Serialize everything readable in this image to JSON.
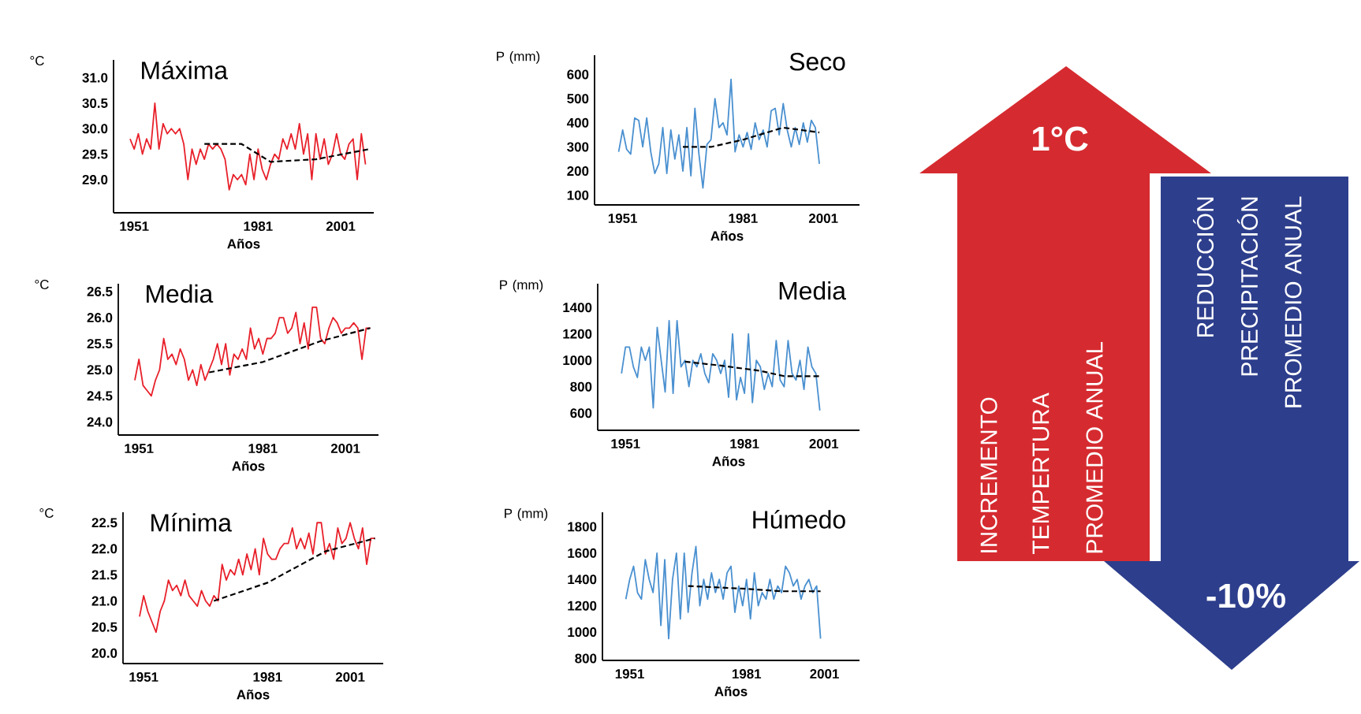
{
  "chart_data": [
    {
      "type": "line",
      "title": "Máxima",
      "xlabel": "Años",
      "ylabel": "°C",
      "xlim": [
        1946,
        2009
      ],
      "ylim": [
        28.35,
        31.35
      ],
      "xticks": [
        1951,
        1981,
        2001
      ],
      "yticks": [
        {
          "value": 29,
          "label": "29.0"
        },
        {
          "value": 29.5,
          "label": "29.5"
        },
        {
          "value": 30,
          "label": "30.0"
        },
        {
          "value": 30.5,
          "label": "30.5"
        },
        {
          "value": 31,
          "label": "31.0"
        }
      ],
      "series": [
        {
          "color": "#e8202a",
          "x": [
            1950,
            1951,
            1952,
            1953,
            1954,
            1955,
            1956,
            1957,
            1958,
            1959,
            1960,
            1961,
            1962,
            1963,
            1964,
            1965,
            1966,
            1967,
            1968,
            1969,
            1970,
            1971,
            1972,
            1973,
            1974,
            1975,
            1976,
            1977,
            1978,
            1979,
            1980,
            1981,
            1982,
            1983,
            1984,
            1985,
            1986,
            1987,
            1988,
            1989,
            1990,
            1991,
            1992,
            1993,
            1994,
            1995,
            1996,
            1997,
            1998,
            1999,
            2000,
            2001,
            2002,
            2003,
            2004,
            2005,
            2006,
            2007
          ],
          "values": [
            29.8,
            29.6,
            29.9,
            29.5,
            29.8,
            29.6,
            30.5,
            29.6,
            30.1,
            29.9,
            30.0,
            29.9,
            30.0,
            29.7,
            29.0,
            29.6,
            29.3,
            29.6,
            29.4,
            29.7,
            29.6,
            29.7,
            29.6,
            29.4,
            28.8,
            29.1,
            29.0,
            29.1,
            28.9,
            29.5,
            29.0,
            29.6,
            29.2,
            29.0,
            29.3,
            29.5,
            29.4,
            29.8,
            29.6,
            29.9,
            29.6,
            30.1,
            29.5,
            29.9,
            29.0,
            29.9,
            29.4,
            29.8,
            29.3,
            29.5,
            29.9,
            29.5,
            29.4,
            29.7,
            29.8,
            29.0,
            29.9,
            29.3
          ]
        },
        {
          "color": "#000000",
          "line_style": "dashed",
          "x": [
            1968,
            1977,
            1984,
            1995,
            2008
          ],
          "values": [
            29.7,
            29.7,
            29.35,
            29.4,
            29.6
          ]
        }
      ]
    },
    {
      "type": "line",
      "title": "Media",
      "xlabel": "Años",
      "ylabel": "°C",
      "xlim": [
        1946,
        2009
      ],
      "ylim": [
        23.75,
        26.65
      ],
      "xticks": [
        1951,
        1981,
        2001
      ],
      "yticks": [
        {
          "value": 24,
          "label": "24.0"
        },
        {
          "value": 24.5,
          "label": "24.5"
        },
        {
          "value": 25,
          "label": "25.0"
        },
        {
          "value": 25.5,
          "label": "25.5"
        },
        {
          "value": 26,
          "label": "26.0"
        },
        {
          "value": 26.5,
          "label": "26.5"
        }
      ],
      "series": [
        {
          "color": "#e8202a",
          "x": [
            1950,
            1951,
            1952,
            1953,
            1954,
            1955,
            1956,
            1957,
            1958,
            1959,
            1960,
            1961,
            1962,
            1963,
            1964,
            1965,
            1966,
            1967,
            1968,
            1969,
            1970,
            1971,
            1972,
            1973,
            1974,
            1975,
            1976,
            1977,
            1978,
            1979,
            1980,
            1981,
            1982,
            1983,
            1984,
            1985,
            1986,
            1987,
            1988,
            1989,
            1990,
            1991,
            1992,
            1993,
            1994,
            1995,
            1996,
            1997,
            1998,
            1999,
            2000,
            2001,
            2002,
            2003,
            2004,
            2005,
            2006,
            2007
          ],
          "values": [
            24.8,
            25.2,
            24.7,
            24.6,
            24.5,
            24.8,
            25.0,
            25.6,
            25.2,
            25.3,
            25.1,
            25.4,
            25.2,
            24.8,
            25.0,
            24.7,
            25.1,
            24.8,
            25.0,
            25.2,
            25.5,
            25.1,
            25.5,
            24.9,
            25.3,
            25.2,
            25.4,
            25.2,
            25.8,
            25.4,
            25.6,
            25.3,
            25.6,
            25.6,
            25.7,
            26.0,
            26.0,
            25.7,
            25.8,
            26.1,
            25.5,
            25.9,
            25.4,
            26.2,
            26.2,
            25.6,
            25.5,
            25.8,
            26.0,
            25.9,
            25.7,
            25.8,
            25.8,
            25.9,
            25.8,
            25.2,
            25.8,
            25.8
          ]
        },
        {
          "color": "#000000",
          "line_style": "dashed",
          "x": [
            1968,
            1981,
            1995,
            2007
          ],
          "values": [
            24.95,
            25.15,
            25.55,
            25.8
          ]
        }
      ]
    },
    {
      "type": "line",
      "title": "Mínima",
      "xlabel": "Años",
      "ylabel": "°C",
      "xlim": [
        1946,
        2009
      ],
      "ylim": [
        19.8,
        22.7
      ],
      "xticks": [
        1951,
        1981,
        2001
      ],
      "yticks": [
        {
          "value": 20,
          "label": "20.0"
        },
        {
          "value": 20.5,
          "label": "20.5"
        },
        {
          "value": 21,
          "label": "21.0"
        },
        {
          "value": 21.5,
          "label": "21.5"
        },
        {
          "value": 22,
          "label": "22.0"
        },
        {
          "value": 22.5,
          "label": "22.5"
        }
      ],
      "series": [
        {
          "color": "#e8202a",
          "x": [
            1950,
            1951,
            1952,
            1953,
            1954,
            1955,
            1956,
            1957,
            1958,
            1959,
            1960,
            1961,
            1962,
            1963,
            1964,
            1965,
            1966,
            1967,
            1968,
            1969,
            1970,
            1971,
            1972,
            1973,
            1974,
            1975,
            1976,
            1977,
            1978,
            1979,
            1980,
            1981,
            1982,
            1983,
            1984,
            1985,
            1986,
            1987,
            1988,
            1989,
            1990,
            1991,
            1992,
            1993,
            1994,
            1995,
            1996,
            1997,
            1998,
            1999,
            2000,
            2001,
            2002,
            2003,
            2004,
            2005,
            2006,
            2007
          ],
          "values": [
            20.7,
            21.1,
            20.8,
            20.6,
            20.4,
            20.8,
            21.0,
            21.4,
            21.2,
            21.3,
            21.1,
            21.4,
            21.1,
            21.0,
            20.9,
            21.2,
            21.0,
            20.9,
            21.1,
            21.0,
            21.7,
            21.4,
            21.6,
            21.5,
            21.8,
            21.5,
            21.9,
            21.6,
            22.0,
            21.5,
            22.2,
            21.9,
            21.8,
            21.8,
            22.0,
            22.1,
            22.1,
            22.4,
            22.0,
            22.2,
            22.0,
            22.3,
            21.9,
            22.5,
            22.5,
            21.9,
            22.1,
            21.8,
            22.4,
            22.1,
            22.2,
            22.5,
            22.2,
            22.0,
            22.4,
            21.7,
            22.2,
            22.2
          ]
        },
        {
          "color": "#000000",
          "line_style": "dashed",
          "x": [
            1968,
            1981,
            1995,
            2007
          ],
          "values": [
            21.0,
            21.35,
            21.95,
            22.2
          ]
        }
      ]
    },
    {
      "type": "line",
      "title": "Seco",
      "xlabel": "Años",
      "ylabel": "P (mm)",
      "xlim": [
        1944,
        2010
      ],
      "ylim": [
        60,
        680
      ],
      "xticks": [
        1951,
        1981,
        2001
      ],
      "yticks": [
        100,
        200,
        300,
        400,
        500,
        600
      ],
      "series": [
        {
          "color": "#4a90d0",
          "x": [
            1950,
            1951,
            1952,
            1953,
            1954,
            1955,
            1956,
            1957,
            1958,
            1959,
            1960,
            1961,
            1962,
            1963,
            1964,
            1965,
            1966,
            1967,
            1968,
            1969,
            1970,
            1971,
            1972,
            1973,
            1974,
            1975,
            1976,
            1977,
            1978,
            1979,
            1980,
            1981,
            1982,
            1983,
            1984,
            1985,
            1986,
            1987,
            1988,
            1989,
            1990,
            1991,
            1992,
            1993,
            1994,
            1995,
            1996,
            1997,
            1998,
            1999,
            2000
          ],
          "values": [
            280,
            370,
            290,
            270,
            420,
            410,
            300,
            420,
            280,
            190,
            230,
            380,
            190,
            370,
            250,
            350,
            200,
            380,
            180,
            460,
            270,
            130,
            310,
            330,
            500,
            380,
            400,
            350,
            580,
            280,
            350,
            300,
            360,
            290,
            400,
            330,
            370,
            300,
            450,
            460,
            350,
            480,
            370,
            300,
            380,
            310,
            400,
            320,
            410,
            380,
            230
          ]
        },
        {
          "color": "#000000",
          "line_style": "dashed",
          "x": [
            1966,
            1973,
            1981,
            1991,
            2000
          ],
          "values": [
            300,
            300,
            330,
            380,
            360
          ]
        }
      ]
    },
    {
      "type": "line",
      "title": "Media",
      "xlabel": "Años",
      "ylabel": "P (mm)",
      "xlim": [
        1944,
        2010
      ],
      "ylim": [
        470,
        1580
      ],
      "xticks": [
        1951,
        1981,
        2001
      ],
      "yticks": [
        600,
        800,
        1000,
        1200,
        1400
      ],
      "series": [
        {
          "color": "#4a90d0",
          "x": [
            1950,
            1951,
            1952,
            1953,
            1954,
            1955,
            1956,
            1957,
            1958,
            1959,
            1960,
            1961,
            1962,
            1963,
            1964,
            1965,
            1966,
            1967,
            1968,
            1969,
            1970,
            1971,
            1972,
            1973,
            1974,
            1975,
            1976,
            1977,
            1978,
            1979,
            1980,
            1981,
            1982,
            1983,
            1984,
            1985,
            1986,
            1987,
            1988,
            1989,
            1990,
            1991,
            1992,
            1993,
            1994,
            1995,
            1996,
            1997,
            1998,
            1999,
            2000
          ],
          "values": [
            900,
            1100,
            1100,
            950,
            870,
            1100,
            1000,
            1100,
            640,
            1250,
            1000,
            760,
            1300,
            750,
            1300,
            950,
            1000,
            800,
            1000,
            950,
            1050,
            900,
            830,
            1050,
            1000,
            900,
            1000,
            720,
            1200,
            700,
            870,
            750,
            1200,
            680,
            1000,
            950,
            780,
            900,
            800,
            1150,
            850,
            800,
            1150,
            900,
            850,
            1000,
            780,
            1100,
            950,
            900,
            620
          ]
        },
        {
          "color": "#000000",
          "line_style": "dashed",
          "x": [
            1966,
            1975,
            1985,
            1991,
            2000
          ],
          "values": [
            990,
            960,
            920,
            880,
            880
          ]
        }
      ]
    },
    {
      "type": "line",
      "title": "Húmedo",
      "xlabel": "Años",
      "ylabel": "P (mm)",
      "xlim": [
        1944,
        2010
      ],
      "ylim": [
        785,
        1910
      ],
      "xticks": [
        1951,
        1981,
        2001
      ],
      "yticks": [
        800,
        1000,
        1200,
        1400,
        1600,
        1800
      ],
      "series": [
        {
          "color": "#4a90d0",
          "x": [
            1950,
            1951,
            1952,
            1953,
            1954,
            1955,
            1956,
            1957,
            1958,
            1959,
            1960,
            1961,
            1962,
            1963,
            1964,
            1965,
            1966,
            1967,
            1968,
            1969,
            1970,
            1971,
            1972,
            1973,
            1974,
            1975,
            1976,
            1977,
            1978,
            1979,
            1980,
            1981,
            1982,
            1983,
            1984,
            1985,
            1986,
            1987,
            1988,
            1989,
            1990,
            1991,
            1992,
            1993,
            1994,
            1995,
            1996,
            1997,
            1998,
            1999,
            2000
          ],
          "values": [
            1250,
            1400,
            1500,
            1300,
            1250,
            1550,
            1400,
            1300,
            1600,
            1050,
            1550,
            950,
            1400,
            1600,
            1100,
            1600,
            1150,
            1450,
            1650,
            1200,
            1400,
            1250,
            1450,
            1300,
            1400,
            1250,
            1450,
            1500,
            1150,
            1350,
            1200,
            1400,
            1100,
            1450,
            1200,
            1300,
            1250,
            1400,
            1250,
            1350,
            1300,
            1500,
            1450,
            1350,
            1400,
            1250,
            1350,
            1400,
            1300,
            1350,
            950
          ]
        },
        {
          "color": "#000000",
          "line_style": "dashed",
          "x": [
            1966,
            1980,
            1990,
            2000
          ],
          "values": [
            1350,
            1330,
            1310,
            1310
          ]
        }
      ]
    },
    {
      "type": "other",
      "colors": [
        "#d52b30",
        "#2d3e8c"
      ],
      "annotations": [
        "1°C",
        "INCREMENTO",
        "TEMPERTURA",
        "PROMEDIO ANUAL",
        "REDUCCIÓN",
        "PRECIPITACIÓN",
        "PROMEDIO ANUAL",
        "-10%"
      ]
    }
  ]
}
